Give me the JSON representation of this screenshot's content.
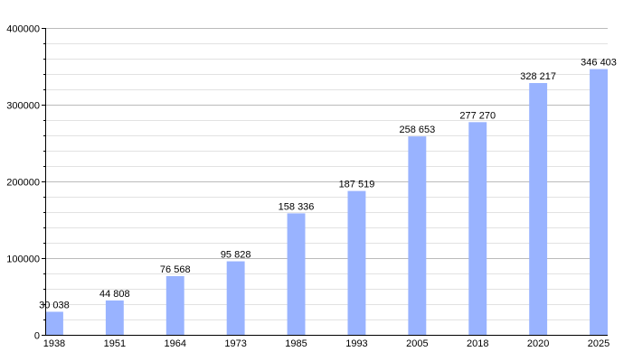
{
  "chart_data": {
    "type": "bar",
    "categories": [
      "1938",
      "1951",
      "1964",
      "1973",
      "1985",
      "1993",
      "2005",
      "2018",
      "2020",
      "2025"
    ],
    "values": [
      30038,
      44808,
      76568,
      95828,
      158336,
      187519,
      258653,
      277270,
      328217,
      346403
    ],
    "data_labels": [
      "30 038",
      "44 808",
      "76 568",
      "95 828",
      "158 336",
      "187 519",
      "258 653",
      "277 270",
      "328 217",
      "346 403"
    ],
    "ylim": [
      0,
      400000
    ],
    "y_major_ticks": [
      0,
      100000,
      200000,
      300000,
      400000
    ],
    "y_tick_labels": [
      "0",
      "100000",
      "200000",
      "300000",
      "400000"
    ],
    "y_minor_step": 20000,
    "grid": true,
    "title": "",
    "xlabel": "",
    "ylabel": "",
    "colors": {
      "bar": "#99b3ff",
      "grid_major": "#bbbbbb",
      "grid_minor": "#e2e2e2",
      "axis": "#000000"
    }
  }
}
